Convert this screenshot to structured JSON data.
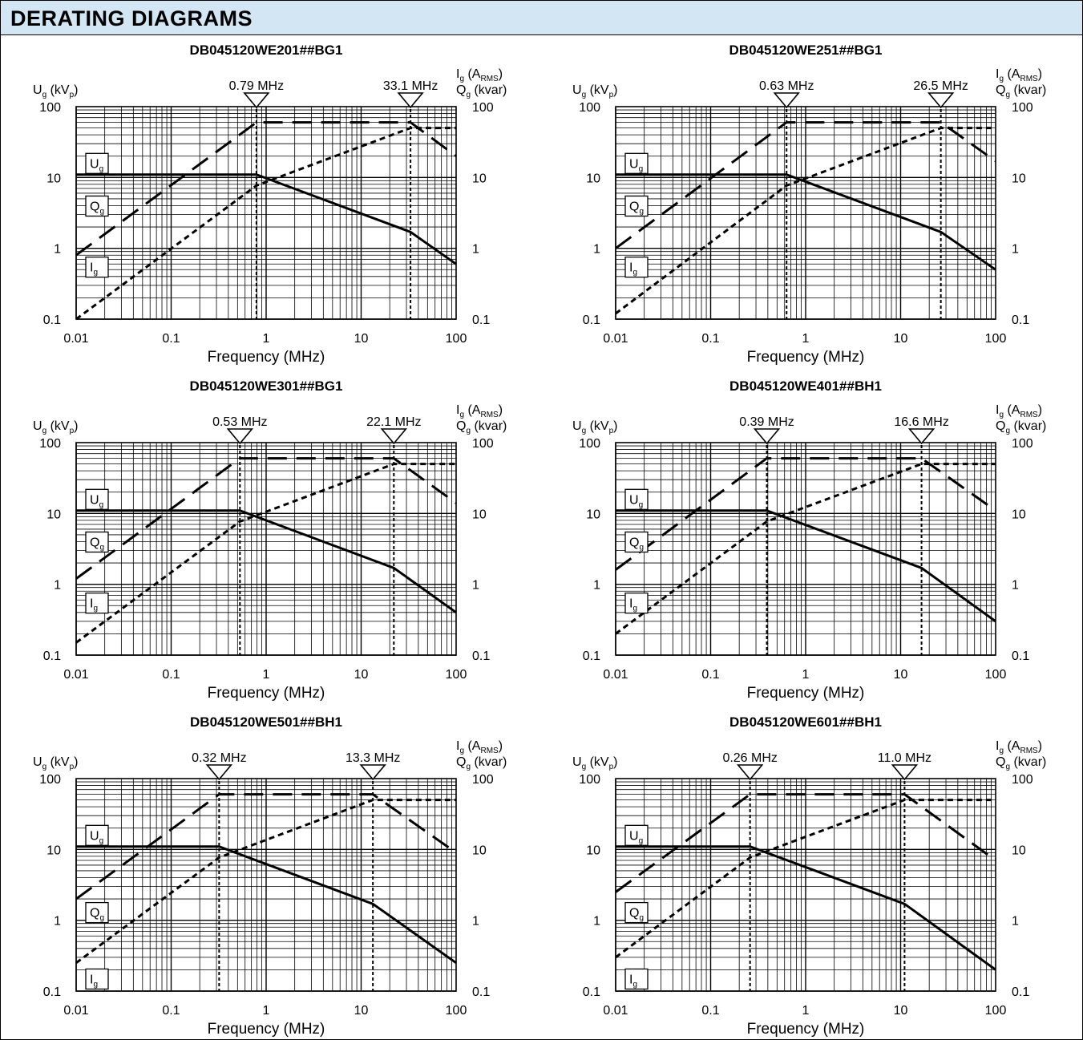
{
  "header": {
    "title": "DERATING DIAGRAMS"
  },
  "chart_data": [
    {
      "type": "line",
      "title": "DB045120WE201##BG1",
      "xlabel": "Frequency (MHz)",
      "x_scale": "log",
      "xlim": [
        0.01,
        100
      ],
      "ylim": [
        0.1,
        100
      ],
      "y_scale": "log",
      "x_ticks": [
        "0.01",
        "0.1",
        "1",
        "10",
        "100"
      ],
      "y_ticks_left": [
        "0.1",
        "1",
        "10",
        "100"
      ],
      "y_ticks_right": [
        "0.1",
        "1",
        "10",
        "100"
      ],
      "left_axis_label": {
        "main": "U",
        "sub": "g",
        "unit_pre": "(kV",
        "unit_sub": "p",
        "unit_post": ")"
      },
      "right_axis_label_1": {
        "main": "I",
        "sub": "g",
        "unit_pre": "(A",
        "unit_sub": "RMS",
        "unit_post": ")"
      },
      "right_axis_label_2": {
        "main": "Q",
        "sub": "g",
        "unit": "(kvar)"
      },
      "markers": [
        {
          "x": 0.79,
          "label": "0.79 MHz"
        },
        {
          "x": 33.1,
          "label": "33.1 MHz"
        }
      ],
      "series": [
        {
          "name": "Ug",
          "style": "solid",
          "points": [
            [
              0.01,
              11
            ],
            [
              0.79,
              11
            ],
            [
              33.1,
              1.7
            ],
            [
              100,
              0.6
            ]
          ]
        },
        {
          "name": "Qg",
          "style": "long-dash",
          "points": [
            [
              0.01,
              0.8
            ],
            [
              0.79,
              60
            ],
            [
              33.1,
              60
            ],
            [
              100,
              20
            ]
          ]
        },
        {
          "name": "Ig",
          "style": "short-dash",
          "points": [
            [
              0.01,
              0.1
            ],
            [
              0.79,
              7.7
            ],
            [
              33.1,
              50
            ],
            [
              100,
              50
            ]
          ]
        }
      ],
      "legend": [
        {
          "main": "U",
          "sub": "g",
          "y": 16
        },
        {
          "main": "Q",
          "sub": "g",
          "y": 4
        },
        {
          "main": "I",
          "sub": "g",
          "y": 0.55
        }
      ]
    },
    {
      "type": "line",
      "title": "DB045120WE251##BG1",
      "xlabel": "Frequency (MHz)",
      "x_scale": "log",
      "xlim": [
        0.01,
        100
      ],
      "ylim": [
        0.1,
        100
      ],
      "y_scale": "log",
      "x_ticks": [
        "0.01",
        "0.1",
        "1",
        "10",
        "100"
      ],
      "y_ticks_left": [
        "0.1",
        "1",
        "10",
        "100"
      ],
      "y_ticks_right": [
        "0.1",
        "1",
        "10",
        "100"
      ],
      "left_axis_label": {
        "main": "U",
        "sub": "g",
        "unit_pre": "(kV",
        "unit_sub": "p",
        "unit_post": ")"
      },
      "right_axis_label_1": {
        "main": "I",
        "sub": "g",
        "unit_pre": "(A",
        "unit_sub": "RMS",
        "unit_post": ")"
      },
      "right_axis_label_2": {
        "main": "Q",
        "sub": "g",
        "unit": "(kvar)"
      },
      "markers": [
        {
          "x": 0.63,
          "label": "0.63 MHz"
        },
        {
          "x": 26.5,
          "label": "26.5 MHz"
        }
      ],
      "series": [
        {
          "name": "Ug",
          "style": "solid",
          "points": [
            [
              0.01,
              11
            ],
            [
              0.63,
              11
            ],
            [
              26.5,
              1.7
            ],
            [
              100,
              0.5
            ]
          ]
        },
        {
          "name": "Qg",
          "style": "long-dash",
          "points": [
            [
              0.01,
              1.0
            ],
            [
              0.63,
              60
            ],
            [
              26.5,
              60
            ],
            [
              100,
              17
            ]
          ]
        },
        {
          "name": "Ig",
          "style": "short-dash",
          "points": [
            [
              0.01,
              0.12
            ],
            [
              0.63,
              7.7
            ],
            [
              26.5,
              50
            ],
            [
              100,
              50
            ]
          ]
        }
      ],
      "legend": [
        {
          "main": "U",
          "sub": "g",
          "y": 16
        },
        {
          "main": "Q",
          "sub": "g",
          "y": 4
        },
        {
          "main": "I",
          "sub": "g",
          "y": 0.55
        }
      ]
    },
    {
      "type": "line",
      "title": "DB045120WE301##BG1",
      "xlabel": "Frequency (MHz)",
      "x_scale": "log",
      "xlim": [
        0.01,
        100
      ],
      "ylim": [
        0.1,
        100
      ],
      "y_scale": "log",
      "x_ticks": [
        "0.01",
        "0.1",
        "1",
        "10",
        "100"
      ],
      "y_ticks_left": [
        "0.1",
        "1",
        "10",
        "100"
      ],
      "y_ticks_right": [
        "0.1",
        "1",
        "10",
        "100"
      ],
      "left_axis_label": {
        "main": "U",
        "sub": "g",
        "unit_pre": "(kV",
        "unit_sub": "p",
        "unit_post": ")"
      },
      "right_axis_label_1": {
        "main": "I",
        "sub": "g",
        "unit_pre": "(A",
        "unit_sub": "RMS",
        "unit_post": ")"
      },
      "right_axis_label_2": {
        "main": "Q",
        "sub": "g",
        "unit": "(kvar)"
      },
      "markers": [
        {
          "x": 0.53,
          "label": "0.53 MHz"
        },
        {
          "x": 22.1,
          "label": "22.1 MHz"
        }
      ],
      "series": [
        {
          "name": "Ug",
          "style": "solid",
          "points": [
            [
              0.01,
              11
            ],
            [
              0.53,
              11
            ],
            [
              22.1,
              1.7
            ],
            [
              100,
              0.4
            ]
          ]
        },
        {
          "name": "Qg",
          "style": "long-dash",
          "points": [
            [
              0.01,
              1.2
            ],
            [
              0.53,
              60
            ],
            [
              22.1,
              60
            ],
            [
              100,
              14
            ]
          ]
        },
        {
          "name": "Ig",
          "style": "short-dash",
          "points": [
            [
              0.01,
              0.15
            ],
            [
              0.53,
              7.7
            ],
            [
              22.1,
              50
            ],
            [
              100,
              50
            ]
          ]
        }
      ],
      "legend": [
        {
          "main": "U",
          "sub": "g",
          "y": 16
        },
        {
          "main": "Q",
          "sub": "g",
          "y": 4
        },
        {
          "main": "I",
          "sub": "g",
          "y": 0.55
        }
      ]
    },
    {
      "type": "line",
      "title": "DB045120WE401##BH1",
      "xlabel": "Frequency (MHz)",
      "x_scale": "log",
      "xlim": [
        0.01,
        100
      ],
      "ylim": [
        0.1,
        100
      ],
      "y_scale": "log",
      "x_ticks": [
        "0.01",
        "0.1",
        "1",
        "10",
        "100"
      ],
      "y_ticks_left": [
        "0.1",
        "1",
        "10",
        "100"
      ],
      "y_ticks_right": [
        "0.1",
        "1",
        "10",
        "100"
      ],
      "left_axis_label": {
        "main": "U",
        "sub": "g",
        "unit_pre": "(kV",
        "unit_sub": "p",
        "unit_post": ")"
      },
      "right_axis_label_1": {
        "main": "I",
        "sub": "g",
        "unit_pre": "(A",
        "unit_sub": "RMS",
        "unit_post": ")"
      },
      "right_axis_label_2": {
        "main": "Q",
        "sub": "g",
        "unit": "(kvar)"
      },
      "markers": [
        {
          "x": 0.39,
          "label": "0.39 MHz"
        },
        {
          "x": 16.6,
          "label": "16.6 MHz"
        }
      ],
      "series": [
        {
          "name": "Ug",
          "style": "solid",
          "points": [
            [
              0.01,
              11
            ],
            [
              0.39,
              11
            ],
            [
              16.6,
              1.7
            ],
            [
              100,
              0.3
            ]
          ]
        },
        {
          "name": "Qg",
          "style": "long-dash",
          "points": [
            [
              0.01,
              1.6
            ],
            [
              0.39,
              60
            ],
            [
              16.6,
              60
            ],
            [
              100,
              11
            ]
          ]
        },
        {
          "name": "Ig",
          "style": "short-dash",
          "points": [
            [
              0.01,
              0.2
            ],
            [
              0.39,
              7.7
            ],
            [
              16.6,
              50
            ],
            [
              100,
              50
            ]
          ]
        }
      ],
      "legend": [
        {
          "main": "U",
          "sub": "g",
          "y": 16
        },
        {
          "main": "Q",
          "sub": "g",
          "y": 4
        },
        {
          "main": "I",
          "sub": "g",
          "y": 0.55
        }
      ]
    },
    {
      "type": "line",
      "title": "DB045120WE501##BH1",
      "xlabel": "Frequency (MHz)",
      "x_scale": "log",
      "xlim": [
        0.01,
        100
      ],
      "ylim": [
        0.1,
        100
      ],
      "y_scale": "log",
      "x_ticks": [
        "0.01",
        "0.1",
        "1",
        "10",
        "100"
      ],
      "y_ticks_left": [
        "0.1",
        "1",
        "10",
        "100"
      ],
      "y_ticks_right": [
        "0.1",
        "1",
        "10",
        "100"
      ],
      "left_axis_label": {
        "main": "U",
        "sub": "g",
        "unit_pre": "(kV",
        "unit_sub": "p",
        "unit_post": ")"
      },
      "right_axis_label_1": {
        "main": "I",
        "sub": "g",
        "unit_pre": "(A",
        "unit_sub": "RMS",
        "unit_post": ")"
      },
      "right_axis_label_2": {
        "main": "Q",
        "sub": "g",
        "unit": "(kvar)"
      },
      "markers": [
        {
          "x": 0.32,
          "label": "0.32 MHz"
        },
        {
          "x": 13.3,
          "label": "13.3 MHz"
        }
      ],
      "series": [
        {
          "name": "Ug",
          "style": "solid",
          "points": [
            [
              0.01,
              11
            ],
            [
              0.32,
              11
            ],
            [
              13.3,
              1.7
            ],
            [
              100,
              0.25
            ]
          ]
        },
        {
          "name": "Qg",
          "style": "long-dash",
          "points": [
            [
              0.01,
              2.0
            ],
            [
              0.32,
              60
            ],
            [
              13.3,
              60
            ],
            [
              100,
              9
            ]
          ]
        },
        {
          "name": "Ig",
          "style": "short-dash",
          "points": [
            [
              0.01,
              0.25
            ],
            [
              0.32,
              7.7
            ],
            [
              13.3,
              50
            ],
            [
              100,
              50
            ]
          ]
        }
      ],
      "legend": [
        {
          "main": "U",
          "sub": "g",
          "y": 16
        },
        {
          "main": "Q",
          "sub": "g",
          "y": 1.3
        },
        {
          "main": "I",
          "sub": "g",
          "y": 0.15
        }
      ]
    },
    {
      "type": "line",
      "title": "DB045120WE601##BH1",
      "xlabel": "Frequency (MHz)",
      "x_scale": "log",
      "xlim": [
        0.01,
        100
      ],
      "ylim": [
        0.1,
        100
      ],
      "y_scale": "log",
      "x_ticks": [
        "0.01",
        "0.1",
        "1",
        "10",
        "100"
      ],
      "y_ticks_left": [
        "0.1",
        "1",
        "10",
        "100"
      ],
      "y_ticks_right": [
        "0.1",
        "1",
        "10",
        "100"
      ],
      "left_axis_label": {
        "main": "U",
        "sub": "g",
        "unit_pre": "(kV",
        "unit_sub": "p",
        "unit_post": ")"
      },
      "right_axis_label_1": {
        "main": "I",
        "sub": "g",
        "unit_pre": "(A",
        "unit_sub": "RMS",
        "unit_post": ")"
      },
      "right_axis_label_2": {
        "main": "Q",
        "sub": "g",
        "unit": "(kvar)"
      },
      "markers": [
        {
          "x": 0.26,
          "label": "0.26 MHz"
        },
        {
          "x": 11.0,
          "label": "11.0 MHz"
        }
      ],
      "series": [
        {
          "name": "Ug",
          "style": "solid",
          "points": [
            [
              0.01,
              11
            ],
            [
              0.26,
              11
            ],
            [
              11.0,
              1.7
            ],
            [
              100,
              0.2
            ]
          ]
        },
        {
          "name": "Qg",
          "style": "long-dash",
          "points": [
            [
              0.01,
              2.5
            ],
            [
              0.26,
              60
            ],
            [
              11.0,
              60
            ],
            [
              100,
              7
            ]
          ]
        },
        {
          "name": "Ig",
          "style": "short-dash",
          "points": [
            [
              0.01,
              0.3
            ],
            [
              0.26,
              7.7
            ],
            [
              11.0,
              50
            ],
            [
              100,
              50
            ]
          ]
        }
      ],
      "legend": [
        {
          "main": "U",
          "sub": "g",
          "y": 16
        },
        {
          "main": "Q",
          "sub": "g",
          "y": 1.3
        },
        {
          "main": "I",
          "sub": "g",
          "y": 0.15
        }
      ]
    }
  ]
}
